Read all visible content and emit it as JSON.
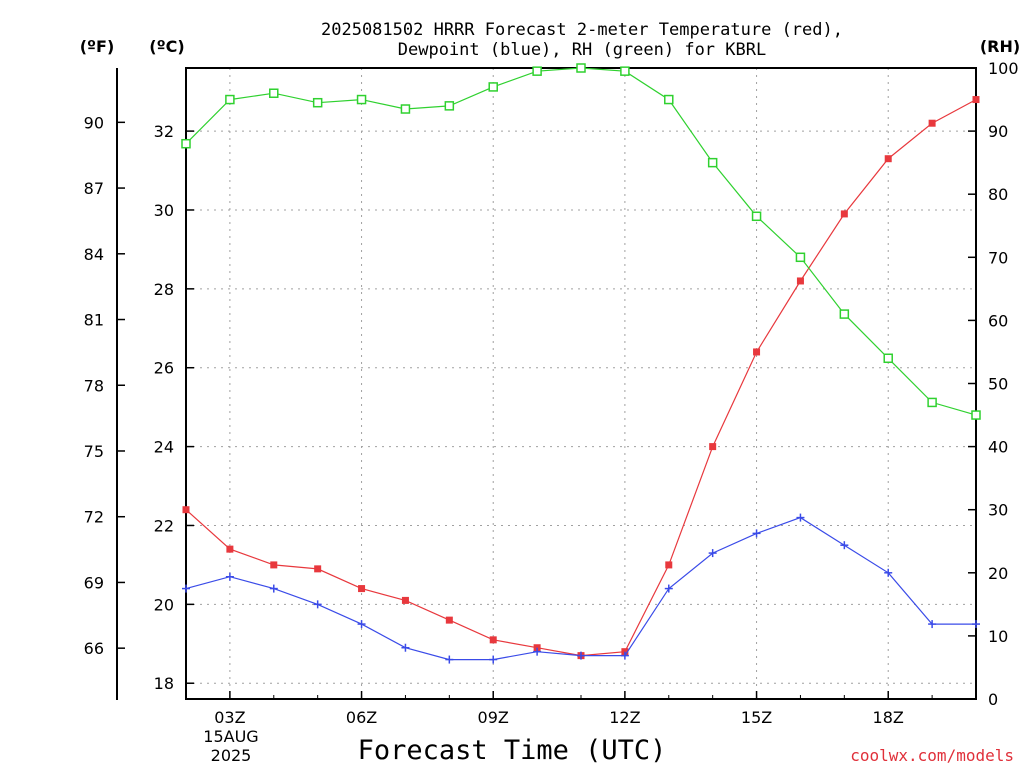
{
  "chart_data": {
    "type": "line",
    "title_lines": [
      "2025081502 HRRR Forecast 2-meter Temperature (red),",
      "Dewpoint (blue), RH (green) for KBRL"
    ],
    "xlabel": "Forecast Time (UTC)",
    "credit": "coolwx.com/models",
    "x_hours": [
      2,
      3,
      4,
      5,
      6,
      7,
      8,
      9,
      10,
      11,
      12,
      13,
      14,
      15,
      16,
      17,
      18,
      19,
      20
    ],
    "xlim": [
      2,
      20
    ],
    "xticks": [
      {
        "hour": 3,
        "label": "03Z"
      },
      {
        "hour": 6,
        "label": "06Z"
      },
      {
        "hour": 9,
        "label": "09Z"
      },
      {
        "hour": 12,
        "label": "12Z"
      },
      {
        "hour": 15,
        "label": "15Z"
      },
      {
        "hour": 18,
        "label": "18Z"
      }
    ],
    "date_label": [
      "15AUG",
      "2025"
    ],
    "axes": {
      "fahrenheit": {
        "unit_label": "(ºF)",
        "ticks": [
          "66",
          "69",
          "72",
          "75",
          "78",
          "81",
          "84",
          "87",
          "90"
        ]
      },
      "celsius": {
        "unit_label": "(ºC)",
        "ylim": [
          17.6,
          33.6
        ],
        "ticks": [
          "18",
          "20",
          "22",
          "24",
          "26",
          "28",
          "30",
          "32"
        ]
      },
      "rh": {
        "unit_label": "(RH)",
        "ylim": [
          0,
          100
        ],
        "ticks": [
          "0",
          "10",
          "20",
          "30",
          "40",
          "50",
          "60",
          "70",
          "80",
          "90",
          "100"
        ]
      }
    },
    "grid": true,
    "series": [
      {
        "name": "Temperature",
        "axis": "celsius",
        "color": "#e8383d",
        "marker": "filled-square",
        "values": [
          22.4,
          21.4,
          21.0,
          20.9,
          20.4,
          20.1,
          19.6,
          19.1,
          18.9,
          18.7,
          18.8,
          21.0,
          24.0,
          26.4,
          28.2,
          29.9,
          31.3,
          32.2,
          32.8
        ]
      },
      {
        "name": "Dewpoint",
        "axis": "celsius",
        "color": "#3a4be8",
        "marker": "plus",
        "values": [
          20.4,
          20.7,
          20.4,
          20.0,
          19.5,
          18.9,
          18.6,
          18.6,
          18.8,
          18.7,
          18.7,
          20.4,
          21.3,
          21.8,
          22.2,
          21.5,
          20.8,
          19.5,
          19.5
        ]
      },
      {
        "name": "RH",
        "axis": "rh",
        "color": "#2fd12f",
        "marker": "open-square",
        "values": [
          88,
          95,
          96,
          94.5,
          95,
          93.5,
          94,
          97,
          99.5,
          100,
          99.5,
          95,
          85,
          76.5,
          70,
          61,
          54,
          47,
          45
        ]
      }
    ]
  }
}
